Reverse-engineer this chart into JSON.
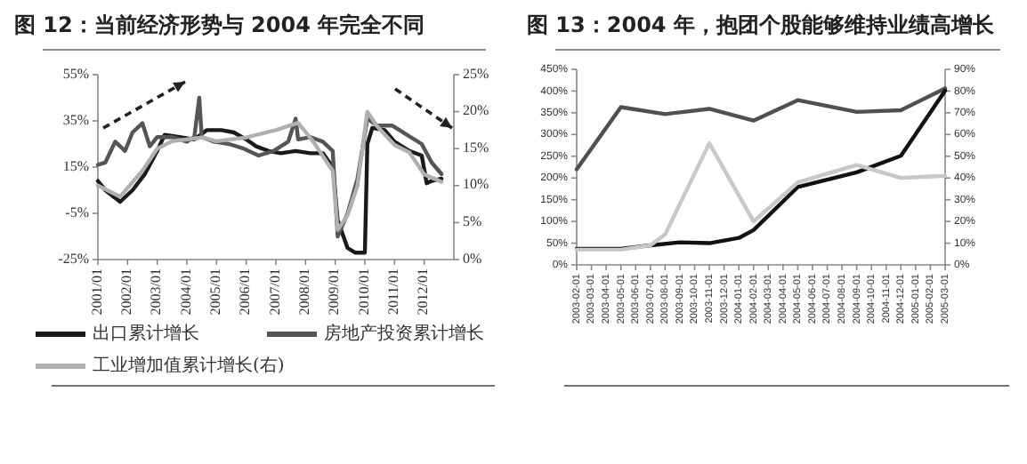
{
  "chart_data": [
    {
      "type": "line",
      "title": "图 12：当前经济形势与 2004 年完全不同",
      "legend": "bottom",
      "xlim": [
        "2001-01",
        "2013-01"
      ],
      "xticks": [
        {
          "value": "2001-01",
          "label": "2001/01"
        },
        {
          "value": "2002-01",
          "label": "2002/01"
        },
        {
          "value": "2003-01",
          "label": "2003/01"
        },
        {
          "value": "2004-01",
          "label": "2004/01"
        },
        {
          "value": "2005-01",
          "label": "2005/01"
        },
        {
          "value": "2006-01",
          "label": "2006/01"
        },
        {
          "value": "2007-01",
          "label": "2007/01"
        },
        {
          "value": "2008-01",
          "label": "2008/01"
        },
        {
          "value": "2009-01",
          "label": "2009/01"
        },
        {
          "value": "2010-01",
          "label": "2010/01"
        },
        {
          "value": "2011-01",
          "label": "2011/01"
        },
        {
          "value": "2012-01",
          "label": "2012/01"
        }
      ],
      "ylim": [
        -25,
        55
      ],
      "yticks": [
        {
          "value": -25,
          "label": "-25%"
        },
        {
          "value": -5,
          "label": "-5%"
        },
        {
          "value": 15,
          "label": "15%"
        },
        {
          "value": 35,
          "label": "35%"
        },
        {
          "value": 55,
          "label": "55%"
        }
      ],
      "y2lim": [
        0,
        25
      ],
      "y2ticks": [
        {
          "value": 0,
          "label": "0%"
        },
        {
          "value": 5,
          "label": "5%"
        },
        {
          "value": 10,
          "label": "10%"
        },
        {
          "value": 15,
          "label": "15%"
        },
        {
          "value": 20,
          "label": "20%"
        },
        {
          "value": 25,
          "label": "25%"
        }
      ],
      "series": [
        {
          "name": "出口累计增长",
          "color": "#1a1a1a",
          "x": [
            "2001-01",
            "2001-04",
            "2001-10",
            "2002-03",
            "2002-08",
            "2003-01",
            "2003-04",
            "2003-10",
            "2004-04",
            "2004-09",
            "2005-03",
            "2005-08",
            "2006-01",
            "2006-05",
            "2006-10",
            "2007-03",
            "2007-09",
            "2008-03",
            "2008-08",
            "2008-12",
            "2009-02",
            "2009-06",
            "2009-09",
            "2010-01",
            "2010-02",
            "2010-04",
            "2010-09",
            "2011-01",
            "2011-07",
            "2011-12",
            "2012-02",
            "2012-04",
            "2012-08"
          ],
          "values": [
            9,
            5,
            0,
            5,
            12,
            22,
            29,
            28,
            27,
            31,
            31,
            30,
            27,
            24,
            22,
            21,
            22,
            21,
            21,
            15,
            -8,
            -20,
            -22,
            -22,
            25,
            32,
            31,
            26,
            22,
            20,
            8,
            9,
            10
          ]
        },
        {
          "name": "房地产投资累计增长",
          "color": "#555555",
          "x": [
            "2001-01",
            "2001-04",
            "2001-08",
            "2001-12",
            "2002-03",
            "2002-07",
            "2002-10",
            "2003-01",
            "2003-07",
            "2004-01",
            "2004-04",
            "2004-06",
            "2004-07",
            "2004-12",
            "2005-06",
            "2005-12",
            "2006-06",
            "2006-12",
            "2007-06",
            "2007-09",
            "2007-10",
            "2008-03",
            "2008-08",
            "2008-12",
            "2009-02",
            "2009-06",
            "2009-10",
            "2010-02",
            "2010-06",
            "2010-12",
            "2011-06",
            "2011-12",
            "2012-04",
            "2012-08"
          ],
          "values": [
            16,
            17,
            26,
            22,
            30,
            34,
            24,
            28,
            28,
            26,
            28,
            45,
            28,
            26,
            25,
            23,
            20,
            22,
            26,
            36,
            27,
            28,
            26,
            22,
            -15,
            -5,
            10,
            36,
            33,
            33,
            29,
            25,
            17,
            12
          ]
        },
        {
          "name": "工业增加值累计增长(右)",
          "color": "#b0b0b0",
          "axis": "y2",
          "x": [
            "2001-01",
            "2001-10",
            "2002-07",
            "2003-01",
            "2003-07",
            "2004-07",
            "2005-01",
            "2006-01",
            "2007-01",
            "2007-10",
            "2008-04",
            "2008-12",
            "2009-02",
            "2009-06",
            "2009-10",
            "2010-02",
            "2010-06",
            "2011-01",
            "2011-07",
            "2012-01",
            "2012-08"
          ],
          "values": [
            10,
            8.5,
            12,
            15,
            16,
            16.5,
            16,
            16.5,
            17.5,
            18.5,
            16,
            12,
            4,
            6,
            10,
            20,
            18,
            15.5,
            14.5,
            11.5,
            10.5
          ]
        }
      ]
    },
    {
      "type": "line",
      "title": "图 13：2004 年，抱团个股能够维持业绩高增长",
      "xlim": [
        "2003-02-01",
        "2005-03-01"
      ],
      "xticks": [
        {
          "value": "2003-02-01",
          "label": "2003-02-01"
        },
        {
          "value": "2003-03-01",
          "label": "2003-03-01"
        },
        {
          "value": "2003-04-01",
          "label": "2003-04-01"
        },
        {
          "value": "2003-05-01",
          "label": "2003-05-01"
        },
        {
          "value": "2003-06-01",
          "label": "2003-06-01"
        },
        {
          "value": "2003-07-01",
          "label": "2003-07-01"
        },
        {
          "value": "2003-08-01",
          "label": "2003-08-01"
        },
        {
          "value": "2003-09-01",
          "label": "2003-09-01"
        },
        {
          "value": "2003-10-01",
          "label": "2003-10-01"
        },
        {
          "value": "2003-11-01",
          "label": "2003-11-01"
        },
        {
          "value": "2003-12-01",
          "label": "2003-12-01"
        },
        {
          "value": "2004-01-01",
          "label": "2004-01-01"
        },
        {
          "value": "2004-02-01",
          "label": "2004-02-01"
        },
        {
          "value": "2004-03-01",
          "label": "2004-03-01"
        },
        {
          "value": "2004-04-01",
          "label": "2004-04-01"
        },
        {
          "value": "2004-05-01",
          "label": "2004-05-01"
        },
        {
          "value": "2004-06-01",
          "label": "2004-06-01"
        },
        {
          "value": "2004-07-01",
          "label": "2004-07-01"
        },
        {
          "value": "2004-08-01",
          "label": "2004-08-01"
        },
        {
          "value": "2004-09-01",
          "label": "2004-09-01"
        },
        {
          "value": "2004-10-01",
          "label": "2004-10-01"
        },
        {
          "value": "2004-11-01",
          "label": "2004-11-01"
        },
        {
          "value": "2004-12-01",
          "label": "2004-12-01"
        },
        {
          "value": "2005-01-01",
          "label": "2005-01-01"
        },
        {
          "value": "2005-02-01",
          "label": "2005-02-01"
        },
        {
          "value": "2005-03-01",
          "label": "2005-03-01"
        }
      ],
      "ylim": [
        0,
        450
      ],
      "yticks": [
        {
          "value": 0,
          "label": "0%"
        },
        {
          "value": 50,
          "label": "50%"
        },
        {
          "value": 100,
          "label": "100%"
        },
        {
          "value": 150,
          "label": "150%"
        },
        {
          "value": 200,
          "label": "200%"
        },
        {
          "value": 250,
          "label": "250%"
        },
        {
          "value": 300,
          "label": "300%"
        },
        {
          "value": 350,
          "label": "350%"
        },
        {
          "value": 400,
          "label": "400%"
        },
        {
          "value": 450,
          "label": "450%"
        }
      ],
      "y2lim": [
        0,
        90
      ],
      "y2ticks": [
        {
          "value": 0,
          "label": "0%"
        },
        {
          "value": 10,
          "label": "10%"
        },
        {
          "value": 20,
          "label": "20%"
        },
        {
          "value": 30,
          "label": "30%"
        },
        {
          "value": 40,
          "label": "40%"
        },
        {
          "value": 50,
          "label": "50%"
        },
        {
          "value": 60,
          "label": "60%"
        },
        {
          "value": 70,
          "label": "70%"
        },
        {
          "value": 80,
          "label": "80%"
        },
        {
          "value": 90,
          "label": "90%"
        }
      ],
      "series": [
        {
          "color": "#505050",
          "x": [
            "2003-02-01",
            "2003-05-01",
            "2003-08-01",
            "2003-11-01",
            "2004-02-01",
            "2004-05-01",
            "2004-09-01",
            "2004-12-01",
            "2005-03-01"
          ],
          "values": [
            220,
            363,
            347,
            359,
            332,
            379,
            352,
            356,
            406
          ]
        },
        {
          "color": "#111111",
          "x": [
            "2003-02-01",
            "2003-05-01",
            "2003-07-01",
            "2003-09-01",
            "2003-11-01",
            "2004-01-01",
            "2004-02-01",
            "2004-05-01",
            "2004-09-01",
            "2004-12-01",
            "2005-03-01"
          ],
          "values": [
            37,
            37,
            45,
            52,
            50,
            62,
            80,
            179,
            213,
            251,
            401
          ]
        },
        {
          "color": "#c8c8c8",
          "axis": "y2",
          "x": [
            "2003-02-01",
            "2003-05-01",
            "2003-07-01",
            "2003-08-01",
            "2003-11-01",
            "2004-02-01",
            "2004-05-01",
            "2004-09-01",
            "2004-12-01",
            "2005-03-01"
          ],
          "values": [
            7,
            7,
            9,
            14,
            56,
            20,
            38,
            46,
            40,
            41
          ]
        }
      ]
    }
  ]
}
